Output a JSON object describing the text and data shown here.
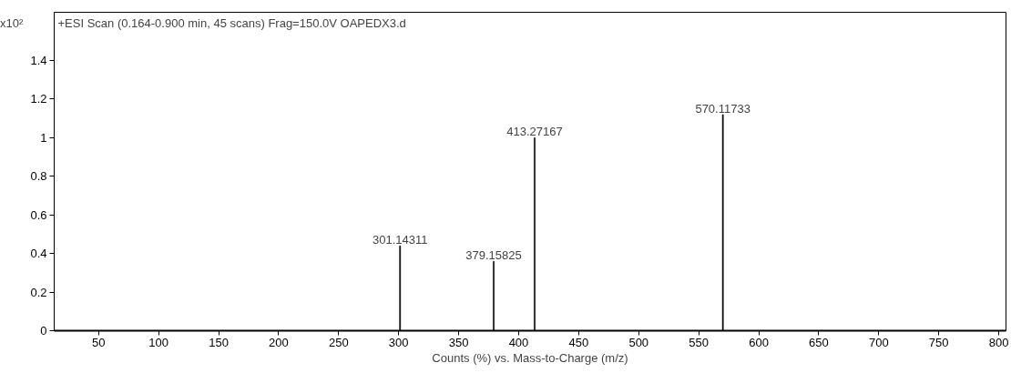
{
  "chart_data": {
    "type": "bar",
    "title": "+ESI Scan (0.164-0.900 min, 45 scans) Frag=150.0V OAPEDX3.d",
    "xlabel": "Counts (%) vs. Mass-to-Charge (m/z)",
    "ylabel": "x10²",
    "x": [
      301.14311,
      379.15825,
      413.27167,
      570.11733
    ],
    "values": [
      0.44,
      0.36,
      1.0,
      1.12
    ],
    "color": "#000000",
    "xlim": [
      13,
      806
    ],
    "ylim": [
      0,
      1.65
    ],
    "xticks": [
      50,
      100,
      150,
      200,
      250,
      300,
      350,
      400,
      450,
      500,
      550,
      600,
      650,
      700,
      750,
      800
    ],
    "yticks": [
      0,
      0.2,
      0.4,
      0.6,
      0.8,
      1,
      1.2,
      1.4
    ],
    "annotations": [
      {
        "text": "301.14311",
        "x": 301.14311,
        "y": 0.44
      },
      {
        "text": "379.15825",
        "x": 379.15825,
        "y": 0.36
      },
      {
        "text": "413.27167",
        "x": 413.27167,
        "y": 1.0
      },
      {
        "text": "570.11733",
        "x": 570.11733,
        "y": 1.12
      }
    ],
    "grid": false
  }
}
